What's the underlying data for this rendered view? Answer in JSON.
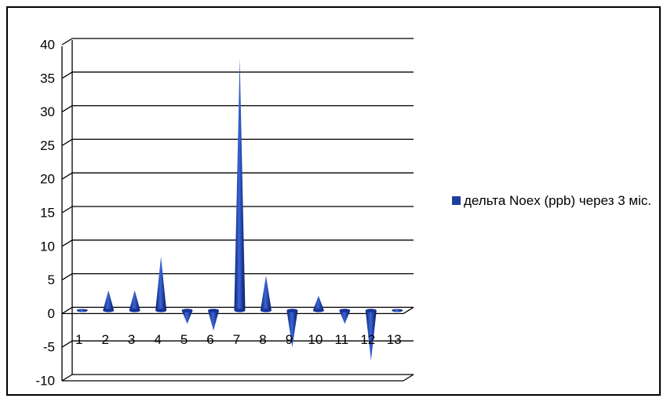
{
  "chart_data": {
    "type": "bar",
    "shape": "cone",
    "categories": [
      "1",
      "2",
      "3",
      "4",
      "5",
      "6",
      "7",
      "8",
      "9",
      "10",
      "11",
      "12",
      "13"
    ],
    "series": [
      {
        "name": "дельта Noex (ppb) через 3 міс.",
        "values": [
          0.2,
          3,
          3,
          8,
          -2,
          -3,
          37.5,
          5.2,
          -5.5,
          2.2,
          -2,
          -7.5,
          0.2
        ]
      }
    ],
    "ylim": [
      -10,
      40
    ],
    "yticks": [
      "40",
      "35",
      "30",
      "25",
      "20",
      "15",
      "10",
      "5",
      "0",
      "-5",
      "-10"
    ],
    "grid": true,
    "legend_position": "right",
    "colors": {
      "series": "#1f3f9e",
      "grid": "#000000"
    }
  }
}
